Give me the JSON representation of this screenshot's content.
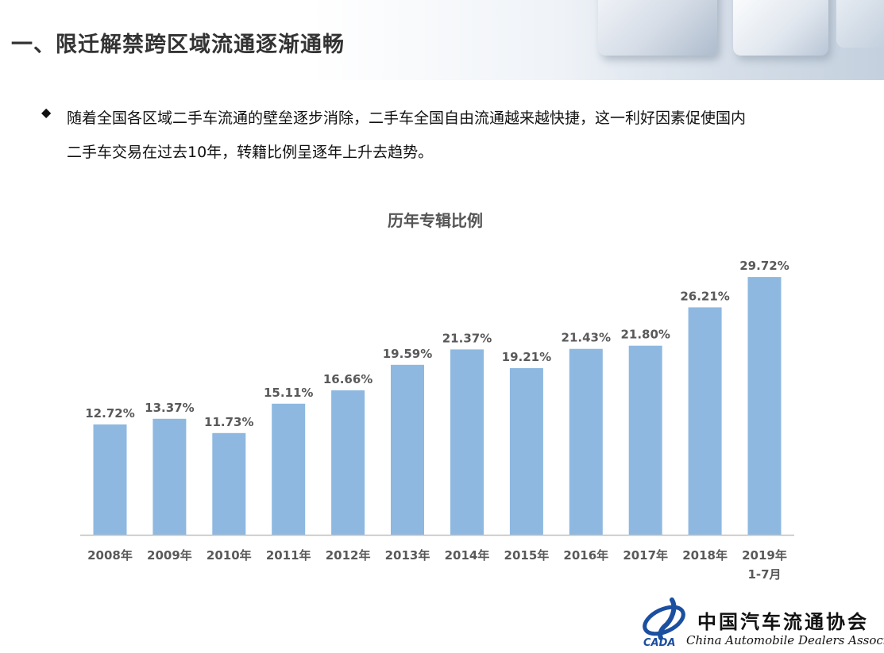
{
  "header": {
    "title": "一、限迁解禁跨区域流通逐渐通畅"
  },
  "bullet": {
    "icon": "diamond-bullet-icon",
    "lines": [
      "随着全国各区域二手车流通的壁垒逐步消除，二手车全国自由流通越来越快捷，这一利好因素促使国内",
      "二手车交易在过去10年，转籍比例呈逐年上升去趋势。"
    ]
  },
  "chart_data": {
    "type": "bar",
    "title": "历年专辑比例",
    "categories": [
      [
        "2008年"
      ],
      [
        "2009年"
      ],
      [
        "2010年"
      ],
      [
        "2011年"
      ],
      [
        "2012年"
      ],
      [
        "2013年"
      ],
      [
        "2014年"
      ],
      [
        "2015年"
      ],
      [
        "2016年"
      ],
      [
        "2017年"
      ],
      [
        "2018年"
      ],
      [
        "2019年",
        "1-7月"
      ]
    ],
    "values": [
      12.72,
      13.37,
      11.73,
      15.11,
      16.66,
      19.59,
      21.37,
      19.21,
      21.43,
      21.8,
      26.21,
      29.72
    ],
    "value_labels": [
      "12.72%",
      "13.37%",
      "11.73%",
      "15.11%",
      "16.66%",
      "19.59%",
      "21.37%",
      "19.21%",
      "21.43%",
      "21.80%",
      "26.21%",
      "29.72%"
    ],
    "unit": "%",
    "ylim": [
      0,
      30
    ],
    "grid": false,
    "legend": "none",
    "bar_color": "#8eb8e0",
    "axis_color": "#bfbfbf",
    "label_color": "#595959"
  },
  "logo": {
    "mark_text": "CADA",
    "cn_name": "中国汽车流通协会",
    "en_name": "China Automobile Dealers Association",
    "mark_color": "#1b4fa0"
  }
}
